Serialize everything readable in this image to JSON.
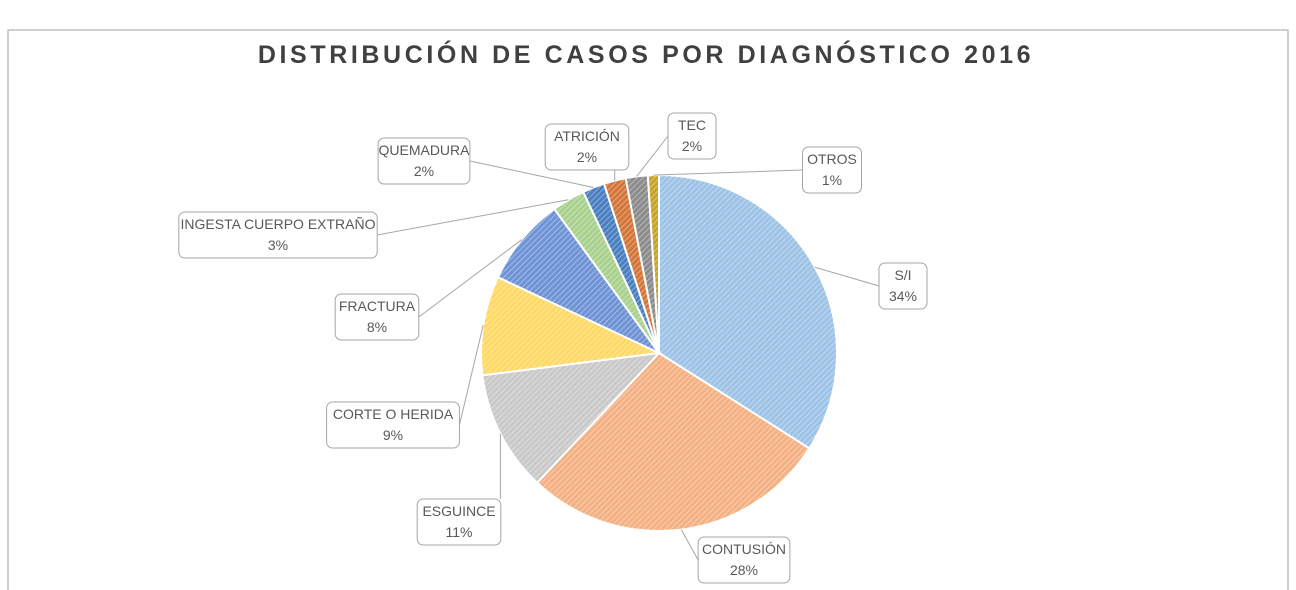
{
  "chart_data": {
    "type": "pie",
    "title": "DISTRIBUCIÓN DE CASOS POR DIAGNÓSTICO 2016",
    "categories": [
      "S/I",
      "CONTUSIÓN",
      "ESGUINCE",
      "CORTE O HERIDA",
      "FRACTURA",
      "INGESTA CUERPO EXTRAÑO",
      "QUEMADURA",
      "ATRICIÓN",
      "TEC",
      "OTROS"
    ],
    "values": [
      34,
      28,
      11,
      9,
      8,
      3,
      2,
      2,
      2,
      1
    ],
    "value_labels": [
      "34%",
      "28%",
      "11%",
      "9%",
      "8%",
      "3%",
      "2%",
      "2%",
      "2%",
      "1%"
    ],
    "colors": [
      "#9dc3e6",
      "#f4b183",
      "#c9c9c9",
      "#ffd966",
      "#6f94d6",
      "#a9d18e",
      "#4a7fc0",
      "#d4763a",
      "#8c8c8c",
      "#c9a227"
    ]
  }
}
